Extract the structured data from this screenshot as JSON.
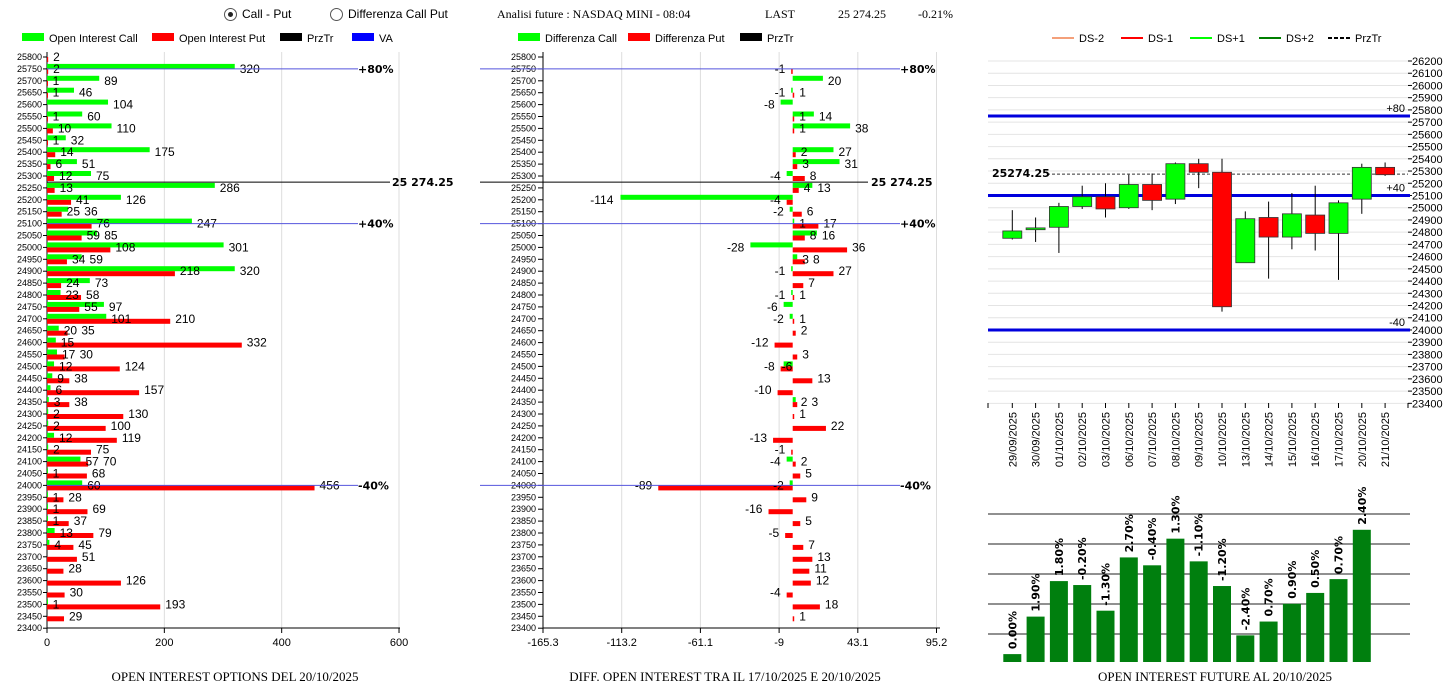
{
  "header": {
    "radio_call_put": "Call - Put",
    "radio_diff": "Differenza Call Put",
    "selected": "Call - Put",
    "title": "Analisi future : NASDAQ MINI - 08:04",
    "last_label": "LAST",
    "last_value": "25 274.25",
    "change": "-0.21%"
  },
  "colors": {
    "call": "#00ff00",
    "put": "#ff0000",
    "prztr": "#000000",
    "va": "#0000ff",
    "dsm2": "#f4a07a",
    "dsm1": "#ff0000",
    "dsp1": "#00ff00",
    "dsp2": "#007f00",
    "oi_bar": "#007f0e"
  },
  "chart_data": [
    {
      "type": "bar",
      "orientation": "horizontal",
      "title": "OPEN INTEREST OPTIONS DEL 20/10/2025",
      "legend": [
        "Open Interest Call",
        "Open Interest Put",
        "PrzTr",
        "VA"
      ],
      "legend_placement": "top",
      "strikes": [
        25800,
        25750,
        25700,
        25650,
        25600,
        25550,
        25500,
        25450,
        25400,
        25350,
        25300,
        25250,
        25200,
        25150,
        25100,
        25050,
        25000,
        24950,
        24900,
        24850,
        24800,
        24750,
        24700,
        24650,
        24600,
        24550,
        24500,
        24450,
        24400,
        24350,
        24300,
        24250,
        24200,
        24150,
        24100,
        24050,
        24000,
        23950,
        23900,
        23850,
        23800,
        23750,
        23700,
        23650,
        23600,
        23550,
        23500,
        23450
      ],
      "y_ticks": [
        25800,
        25750,
        25700,
        25650,
        25600,
        25550,
        25500,
        25450,
        25400,
        25350,
        25300,
        25250,
        25200,
        25150,
        25100,
        25050,
        25000,
        24950,
        24900,
        24850,
        24800,
        24750,
        24700,
        24650,
        24600,
        24550,
        24500,
        24450,
        24400,
        24350,
        24300,
        24250,
        24200,
        24150,
        24100,
        24050,
        24000,
        23950,
        23900,
        23850,
        23800,
        23750,
        23700,
        23650,
        23600,
        23550,
        23500,
        23450,
        23400
      ],
      "series": [
        {
          "name": "Open Interest Call",
          "values": [
            null,
            320,
            89,
            46,
            104,
            60,
            110,
            32,
            175,
            51,
            75,
            286,
            126,
            36,
            247,
            85,
            301,
            59,
            320,
            73,
            23,
            97,
            101,
            20,
            15,
            17,
            12,
            9,
            6,
            3,
            2,
            2,
            12,
            2,
            57,
            1,
            60,
            1,
            1,
            1,
            13,
            4,
            null,
            null,
            null,
            null,
            1,
            null
          ]
        },
        {
          "name": "Open Interest Put",
          "values": [
            2,
            2,
            1,
            1,
            null,
            1,
            10,
            1,
            14,
            6,
            12,
            13,
            41,
            25,
            76,
            59,
            108,
            34,
            218,
            24,
            58,
            55,
            210,
            35,
            332,
            30,
            124,
            38,
            157,
            38,
            130,
            100,
            119,
            75,
            70,
            68,
            456,
            28,
            69,
            37,
            79,
            45,
            51,
            28,
            126,
            30,
            193,
            29
          ]
        }
      ],
      "xlim": [
        0,
        600
      ],
      "x_ticks": [
        "0",
        "200",
        "400",
        "600"
      ],
      "grid": true,
      "ref_lines": [
        {
          "label": "+80%",
          "value": 25750
        },
        {
          "label": "25 274.25",
          "value": 25274.25
        },
        {
          "label": "+40%",
          "value": 25100
        },
        {
          "label": "-40%",
          "value": 24000
        }
      ]
    },
    {
      "type": "bar",
      "orientation": "horizontal",
      "title": "DIFF. OPEN INTEREST TRA IL 17/10/2025 E 20/10/2025",
      "legend": [
        "Differenza Call",
        "Differenza Put",
        "PrzTr"
      ],
      "legend_placement": "top",
      "series": [
        {
          "name": "Differenza Call",
          "values": [
            null,
            null,
            20,
            -1,
            -8,
            14,
            38,
            null,
            27,
            31,
            -4,
            13,
            -114,
            -2,
            1,
            16,
            -28,
            3,
            -1,
            null,
            -1,
            -6,
            -2,
            null,
            null,
            null,
            -6,
            null,
            null,
            2,
            null,
            null,
            null,
            null,
            -4,
            null,
            -2,
            null,
            null,
            null,
            null,
            null,
            null,
            null,
            null,
            null,
            null,
            null
          ]
        },
        {
          "name": "Differenza Put",
          "values": [
            null,
            -1,
            null,
            1,
            null,
            1,
            1,
            null,
            2,
            3,
            8,
            4,
            -4,
            6,
            17,
            8,
            36,
            8,
            27,
            7,
            1,
            null,
            1,
            2,
            -12,
            3,
            -8,
            13,
            -10,
            3,
            1,
            22,
            -13,
            -1,
            2,
            5,
            -89,
            9,
            -16,
            5,
            -5,
            7,
            13,
            11,
            12,
            -4,
            18,
            1
          ]
        }
      ],
      "xlim": [
        -165.3,
        95.2
      ],
      "x_ticks": [
        "-165.3",
        "-113.2",
        "-61.1",
        "-9",
        "43.1",
        "95.2"
      ],
      "grid": true,
      "ref_lines": [
        {
          "label": "+80%",
          "value": 25750
        },
        {
          "label": "25 274.25",
          "value": 25274.25
        },
        {
          "label": "+40%",
          "value": 25100
        },
        {
          "label": "-40%",
          "value": 24000
        }
      ]
    },
    {
      "type": "candlestick",
      "legend": [
        "DS-2",
        "DS-1",
        "DS+1",
        "DS+2",
        "PrzTr"
      ],
      "legend_placement": "top",
      "dates": [
        "29/09/2025",
        "30/09/2025",
        "01/10/2025",
        "02/10/2025",
        "03/10/2025",
        "06/10/2025",
        "07/10/2025",
        "08/10/2025",
        "09/10/2025",
        "10/10/2025",
        "13/10/2025",
        "14/10/2025",
        "15/10/2025",
        "16/10/2025",
        "17/10/2025",
        "20/10/2025",
        "21/10/2025"
      ],
      "open": [
        24750,
        24820,
        24840,
        25010,
        25090,
        25000,
        25190,
        25070,
        25360,
        25290,
        24550,
        24920,
        24760,
        24940,
        24790,
        25070,
        25330
      ],
      "high": [
        24980,
        24920,
        25040,
        25180,
        25200,
        25270,
        25280,
        25370,
        25400,
        25400,
        24970,
        25050,
        25120,
        25180,
        25060,
        25360,
        25370
      ],
      "low": [
        24740,
        24720,
        24630,
        24990,
        24920,
        24990,
        24980,
        25030,
        25160,
        24150,
        24550,
        24420,
        24660,
        24650,
        24410,
        24950,
        25260
      ],
      "close": [
        24810,
        24835,
        25010,
        25090,
        24990,
        25190,
        25060,
        25360,
        25290,
        24190,
        24910,
        24760,
        24950,
        24790,
        25040,
        25330,
        25270
      ],
      "ylim": [
        23400,
        26200
      ],
      "y_ticks": [
        26200,
        26100,
        26000,
        25900,
        25800,
        25700,
        25600,
        25500,
        25400,
        25300,
        25200,
        25100,
        25000,
        24900,
        24800,
        24700,
        24600,
        24500,
        24400,
        24300,
        24200,
        24100,
        24000,
        23900,
        23800,
        23700,
        23600,
        23500,
        23400
      ],
      "prztr": {
        "label": "25274.25",
        "value": 25274.25
      },
      "levels": [
        {
          "label": "+80",
          "value": 25750
        },
        {
          "label": "+40",
          "value": 25100
        },
        {
          "label": "-40",
          "value": 24000
        }
      ],
      "grid": true
    },
    {
      "type": "bar",
      "title": "OPEN INTEREST FUTURE AL 20/10/2025",
      "categories": [
        "29/09/2025",
        "30/09/2025",
        "01/10/2025",
        "02/10/2025",
        "03/10/2025",
        "06/10/2025",
        "07/10/2025",
        "08/10/2025",
        "09/10/2025",
        "10/10/2025",
        "13/10/2025",
        "14/10/2025",
        "15/10/2025",
        "16/10/2025",
        "17/10/2025",
        "20/10/2025"
      ],
      "values": [
        8,
        46,
        82,
        78,
        52,
        106,
        98,
        125,
        102,
        77,
        27,
        41,
        59,
        70,
        84,
        134
      ],
      "data_labels": [
        "0.00%",
        "1.90%",
        "1.80%",
        "-0.20%",
        "-1.30%",
        "2.70%",
        "-0.40%",
        "1.30%",
        "-1.10%",
        "-1.20%",
        "-2.40%",
        "0.70%",
        "0.90%",
        "0.50%",
        "0.70%",
        "2.40%"
      ],
      "ylim": [
        0,
        150
      ],
      "grid": true
    }
  ]
}
